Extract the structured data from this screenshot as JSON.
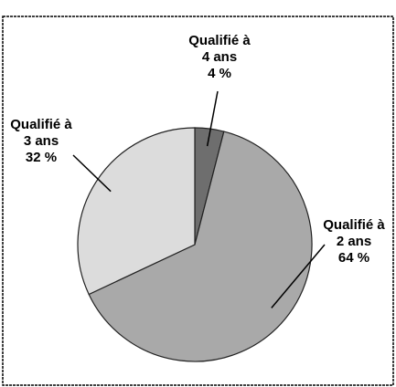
{
  "chart_data": {
    "type": "pie",
    "categories": [
      "Qualifié à 4 ans",
      "Qualifié à 2 ans",
      "Qualifié à 3 ans"
    ],
    "values": [
      4,
      64,
      32
    ],
    "value_labels": [
      "4 %",
      "64 %",
      "32 %"
    ],
    "colors": [
      "#6e6e6e",
      "#a9a9a9",
      "#dcdcdc"
    ]
  }
}
